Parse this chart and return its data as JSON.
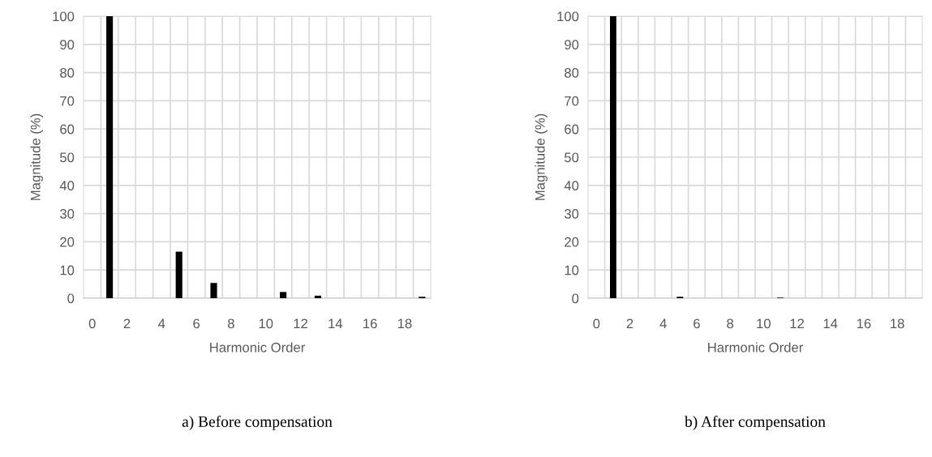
{
  "chart_data": [
    {
      "type": "bar",
      "title": "a) Before compensation",
      "xlabel": "Harmonic Order",
      "ylabel": "Magnitude (%)",
      "categories": [
        "0",
        null,
        "2",
        null,
        "4",
        null,
        "6",
        null,
        "8",
        null,
        "10",
        null,
        "12",
        null,
        "14",
        null,
        "16",
        null,
        "18",
        null
      ],
      "series": [
        {
          "color": "#000000",
          "values": [
            0,
            100,
            0,
            0,
            0,
            16.5,
            0,
            5.4,
            0,
            0,
            0,
            2.2,
            0,
            0.9,
            0,
            0,
            0,
            0,
            0,
            0.5
          ]
        }
      ],
      "ylim": [
        0,
        100
      ],
      "yticks": [
        0,
        10,
        20,
        30,
        40,
        50,
        60,
        70,
        80,
        90,
        100
      ],
      "grid": true,
      "legend": false
    },
    {
      "type": "bar",
      "title": "b) After compensation",
      "xlabel": "Harmonic Order",
      "ylabel": "Magnitude (%)",
      "categories": [
        "0",
        null,
        "2",
        null,
        "4",
        null,
        "6",
        null,
        "8",
        null,
        "10",
        null,
        "12",
        null,
        "14",
        null,
        "16",
        null,
        "18",
        null
      ],
      "series": [
        {
          "color": "#000000",
          "values": [
            0,
            100,
            0,
            0,
            0,
            0.5,
            0,
            0,
            0,
            0,
            0,
            0.2,
            0,
            0,
            0,
            0,
            0,
            0,
            0,
            0
          ]
        }
      ],
      "ylim": [
        0,
        100
      ],
      "yticks": [
        0,
        10,
        20,
        30,
        40,
        50,
        60,
        70,
        80,
        90,
        100
      ],
      "grid": true,
      "legend": false
    }
  ]
}
